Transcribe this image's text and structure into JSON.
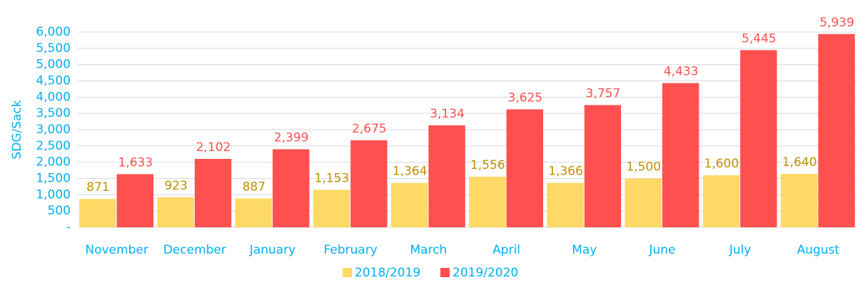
{
  "chart_data": {
    "type": "bar",
    "y_label": "SDG/Sack",
    "categories": [
      "November",
      "December",
      "January",
      "February",
      "March",
      "April",
      "May",
      "June",
      "July",
      "August"
    ],
    "series": [
      {
        "name": "2018/2019",
        "color": "#FFD966",
        "label_color": "#BF9000",
        "values": [
          871,
          923,
          887,
          1153,
          1364,
          1556,
          1366,
          1500,
          1600,
          1640
        ],
        "value_labels": [
          "871",
          "923",
          "887",
          "1,153",
          "1,364",
          "1,556",
          "1,366",
          "1,500",
          "1,600",
          "1,640"
        ]
      },
      {
        "name": "2019/2020",
        "color": "#FF5050",
        "label_color": "#FF5050",
        "values": [
          1633,
          2102,
          2399,
          2675,
          3134,
          3625,
          3757,
          4433,
          5445,
          5939
        ],
        "value_labels": [
          "1,633",
          "2,102",
          "2,399",
          "2,675",
          "3,134",
          "3,625",
          "3,757",
          "4,433",
          "5,445",
          "5,939"
        ]
      }
    ],
    "ylim": [
      0,
      6000
    ],
    "yticks": [
      {
        "value": 0,
        "label": "-"
      },
      500,
      {
        "value": 1000,
        "label": "1,000"
      },
      {
        "value": 1500,
        "label": "1,500"
      },
      {
        "value": 2000,
        "label": "2,000"
      },
      {
        "value": 2500,
        "label": "2,500"
      },
      {
        "value": 3000,
        "label": "3,000"
      },
      {
        "value": 3500,
        "label": "3,500"
      },
      {
        "value": 4000,
        "label": "4,000"
      },
      {
        "value": 4500,
        "label": "4,500"
      },
      {
        "value": 5000,
        "label": "5,000"
      },
      {
        "value": 5500,
        "label": "5,500"
      },
      {
        "value": 6000,
        "label": "6,000"
      }
    ],
    "grid": true,
    "legend": "bottom",
    "axis_color": "#00B0F0"
  }
}
